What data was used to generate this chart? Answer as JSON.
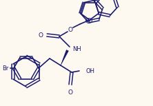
{
  "bg_color": "#fdf8f0",
  "line_color": "#1a1a6e",
  "line_width": 1.2,
  "figsize": [
    2.22,
    1.54
  ],
  "dpi": 100,
  "xlim": [
    0,
    222
  ],
  "ylim": [
    0,
    154
  ]
}
